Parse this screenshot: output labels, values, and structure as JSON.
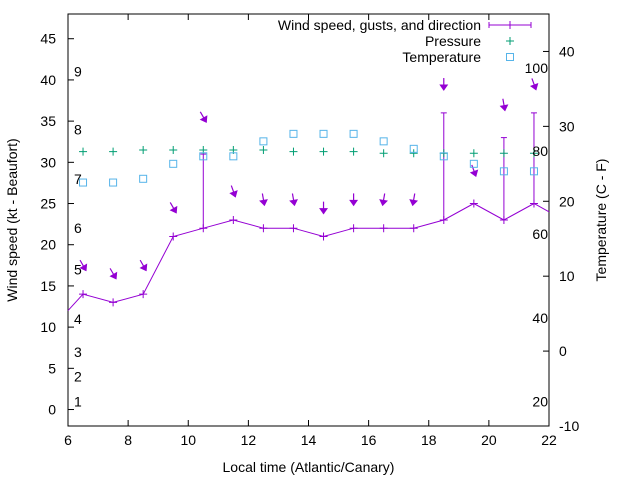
{
  "chart_data": {
    "type": "line",
    "title": "",
    "xlabel": "Local time (Atlantic/Canary)",
    "ylabel": "Wind speed (kt - Beaufort)",
    "y2label": "Temperature (C - F)",
    "xlim": [
      6,
      22
    ],
    "ylim": [
      -2,
      48
    ],
    "y2lim": [
      -10,
      45
    ],
    "x_ticks": [
      6,
      8,
      10,
      12,
      14,
      16,
      18,
      20,
      22
    ],
    "y_ticks": [
      0,
      5,
      10,
      15,
      20,
      25,
      30,
      35,
      40,
      45
    ],
    "y2_ticks": [
      -10,
      0,
      10,
      20,
      30,
      40
    ],
    "beaufort_labels": [
      {
        "label": "1",
        "y": 1
      },
      {
        "label": "2",
        "y": 4
      },
      {
        "label": "3",
        "y": 7
      },
      {
        "label": "4",
        "y": 11
      },
      {
        "label": "5",
        "y": 17
      },
      {
        "label": "6",
        "y": 22
      },
      {
        "label": "7",
        "y": 28
      },
      {
        "label": "8",
        "y": 34
      },
      {
        "label": "9",
        "y": 41
      }
    ],
    "fahrenheit_labels": [
      {
        "label": "20",
        "c": -6.7
      },
      {
        "label": "40",
        "c": 4.4
      },
      {
        "label": "60",
        "c": 15.6
      },
      {
        "label": "80",
        "c": 26.7
      },
      {
        "label": "100",
        "c": 37.8
      }
    ],
    "legend": [
      {
        "name": "Wind speed, gusts, and direction",
        "symbol": "line"
      },
      {
        "name": "Pressure",
        "symbol": "plus"
      },
      {
        "name": "Temperature",
        "symbol": "square"
      }
    ],
    "series": [
      {
        "name": "Wind speed",
        "color": "#9400d3",
        "x": [
          6.0,
          6.5,
          7.5,
          8.5,
          9.5,
          10.5,
          11.5,
          12.5,
          13.5,
          14.5,
          15.5,
          16.5,
          17.5,
          18.5,
          19.5,
          20.5,
          21.5,
          22.0
        ],
        "y": [
          12,
          14,
          13,
          14,
          21,
          22,
          23,
          22,
          22,
          21,
          22,
          22,
          22,
          23,
          25,
          23,
          25,
          24
        ]
      },
      {
        "name": "Gusts",
        "color": "#9400d3",
        "x": [
          10.5,
          18.5,
          20.5,
          21.5
        ],
        "base": [
          22,
          23,
          23,
          25
        ],
        "gust": [
          31,
          36,
          33,
          36
        ]
      },
      {
        "name": "Wind direction arrows",
        "color": "#9400d3",
        "x": [
          6.5,
          7.5,
          8.5,
          9.5,
          10.5,
          11.5,
          12.5,
          13.5,
          14.5,
          15.5,
          16.5,
          17.5,
          18.5,
          19.5,
          20.5,
          21.5
        ],
        "y": [
          17.5,
          16.5,
          17.5,
          24.5,
          35.5,
          26.5,
          25.5,
          25.5,
          24.5,
          25.5,
          25.5,
          25.5,
          39.5,
          29,
          37,
          39.5
        ],
        "dir_deg": [
          330,
          330,
          330,
          330,
          330,
          340,
          350,
          350,
          360,
          0,
          10,
          10,
          0,
          340,
          350,
          340
        ]
      },
      {
        "name": "Pressure",
        "color": "#009e73",
        "x": [
          6.5,
          7.5,
          8.5,
          9.5,
          10.5,
          11.5,
          12.5,
          13.5,
          14.5,
          15.5,
          16.5,
          17.5,
          18.5,
          19.5,
          20.5,
          21.5
        ],
        "y": [
          31.3,
          31.3,
          31.5,
          31.5,
          31.5,
          31.5,
          31.5,
          31.3,
          31.3,
          31.3,
          31.1,
          31.1,
          31.1,
          31.1,
          31.1,
          31.1
        ]
      },
      {
        "name": "Temperature",
        "color": "#56b4e9",
        "x": [
          6.5,
          7.5,
          8.5,
          9.5,
          10.5,
          11.5,
          12.5,
          13.5,
          14.5,
          15.5,
          16.5,
          17.5,
          18.5,
          19.5,
          20.5,
          21.5
        ],
        "y": [
          22.5,
          22.5,
          23.0,
          25.0,
          26.0,
          26.0,
          28.0,
          29.0,
          29.0,
          29.0,
          28.0,
          27.0,
          26.0,
          25.0,
          24.0,
          24.0
        ]
      }
    ]
  }
}
